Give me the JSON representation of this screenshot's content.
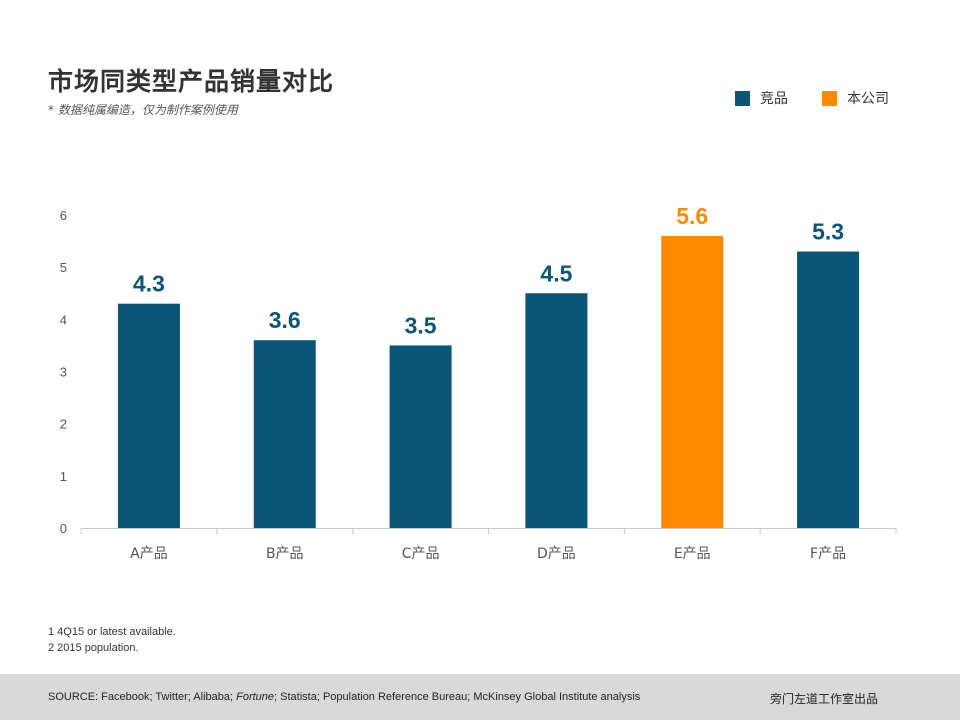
{
  "title": "市场同类型产品销量对比",
  "subtitle": "* 数据纯属编造，仅为制作案例使用",
  "legend": [
    {
      "label": "竞品",
      "color": "#0b5577"
    },
    {
      "label": "本公司",
      "color": "#ff8a00"
    }
  ],
  "chart_data": {
    "type": "bar",
    "categories": [
      "A产品",
      "B产品",
      "C产品",
      "D产品",
      "E产品",
      "F产品"
    ],
    "series": [
      {
        "name": "竞品",
        "values": [
          4.3,
          3.6,
          3.5,
          4.5,
          null,
          5.3
        ],
        "color": "#0b5577"
      },
      {
        "name": "本公司",
        "values": [
          null,
          null,
          null,
          null,
          5.6,
          null
        ],
        "color": "#ff8a00"
      }
    ],
    "data_labels": [
      "4.3",
      "3.6",
      "3.5",
      "4.5",
      "5.6",
      "5.3"
    ],
    "yticks": [
      "0",
      "1",
      "2",
      "3",
      "4",
      "5",
      "6"
    ],
    "ylim": [
      0,
      6
    ],
    "grid": false,
    "legend_position": "top-right"
  },
  "notes": [
    "1 4Q15 or latest available.",
    "2 2015 population."
  ],
  "footer": {
    "source_prefix": "SOURCE: Facebook; Twitter; Alibaba; ",
    "source_italic": "Fortune",
    "source_suffix": "; Statista; Population Reference Bureau; McKinsey Global Institute analysis",
    "credit": "旁门左道工作室出品"
  }
}
